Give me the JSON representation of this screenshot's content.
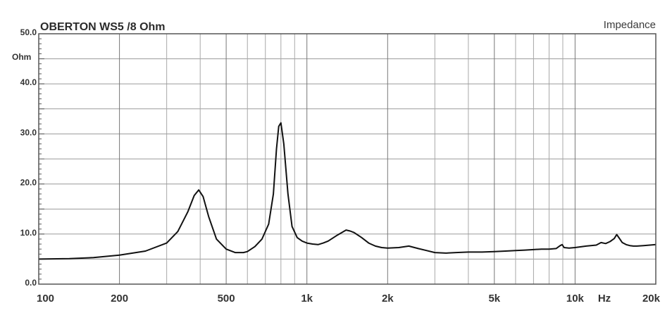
{
  "chart_data": {
    "type": "line",
    "title": "OBERTON WS5 /8 Ohm",
    "metric_label": "Impedance",
    "ylabel": "Ohm",
    "xunit": "Hz",
    "x_scale": "log",
    "xlim": [
      100,
      20000
    ],
    "ylim": [
      0,
      50
    ],
    "grid": true,
    "y_ticks": [
      {
        "value": 50,
        "label": "50.0"
      },
      {
        "value": 40,
        "label": "40.0"
      },
      {
        "value": 30,
        "label": "30.0"
      },
      {
        "value": 20,
        "label": "20.0"
      },
      {
        "value": 10,
        "label": "10.0"
      },
      {
        "value": 0,
        "label": "0.0"
      }
    ],
    "x_ticks": [
      {
        "value": 100,
        "label": "100"
      },
      {
        "value": 200,
        "label": "200"
      },
      {
        "value": 500,
        "label": "500"
      },
      {
        "value": 1000,
        "label": "1k"
      },
      {
        "value": 2000,
        "label": "2k"
      },
      {
        "value": 5000,
        "label": "5k"
      },
      {
        "value": 10000,
        "label": "10k"
      },
      {
        "value": 20000,
        "label": "20k"
      }
    ],
    "series": [
      {
        "x": [
          100,
          130,
          160,
          200,
          250,
          300,
          330,
          360,
          380,
          395,
          410,
          430,
          460,
          500,
          540,
          580,
          600,
          640,
          680,
          720,
          750,
          770,
          785,
          800,
          820,
          850,
          880,
          920,
          960,
          1000,
          1050,
          1100,
          1150,
          1200,
          1300,
          1400,
          1450,
          1500,
          1600,
          1700,
          1800,
          1900,
          2000,
          2200,
          2400,
          2600,
          2800,
          3000,
          3300,
          3600,
          4000,
          4500,
          5000,
          5500,
          6000,
          6500,
          7000,
          7500,
          8000,
          8500,
          8800,
          8950,
          9100,
          9500,
          10000,
          11000,
          12000,
          12500,
          13000,
          13500,
          14000,
          14300,
          14600,
          15000,
          15500,
          16000,
          16500,
          17000,
          18000,
          19000,
          20000
        ],
        "y": [
          5.0,
          5.1,
          5.3,
          5.8,
          6.6,
          8.2,
          10.5,
          14.5,
          17.7,
          18.8,
          17.5,
          13.5,
          9.0,
          7.0,
          6.3,
          6.3,
          6.5,
          7.5,
          9.0,
          12.0,
          18.0,
          27.0,
          31.5,
          32.2,
          28.0,
          18.0,
          11.5,
          9.3,
          8.6,
          8.2,
          8.0,
          7.9,
          8.2,
          8.6,
          9.8,
          10.8,
          10.6,
          10.3,
          9.3,
          8.2,
          7.6,
          7.3,
          7.2,
          7.3,
          7.6,
          7.1,
          6.7,
          6.3,
          6.2,
          6.3,
          6.4,
          6.4,
          6.5,
          6.6,
          6.7,
          6.8,
          6.9,
          7.0,
          7.0,
          7.1,
          7.7,
          7.9,
          7.3,
          7.2,
          7.3,
          7.6,
          7.8,
          8.3,
          8.1,
          8.5,
          9.1,
          9.9,
          9.2,
          8.3,
          7.9,
          7.7,
          7.6,
          7.6,
          7.7,
          7.8,
          7.9
        ]
      }
    ]
  }
}
